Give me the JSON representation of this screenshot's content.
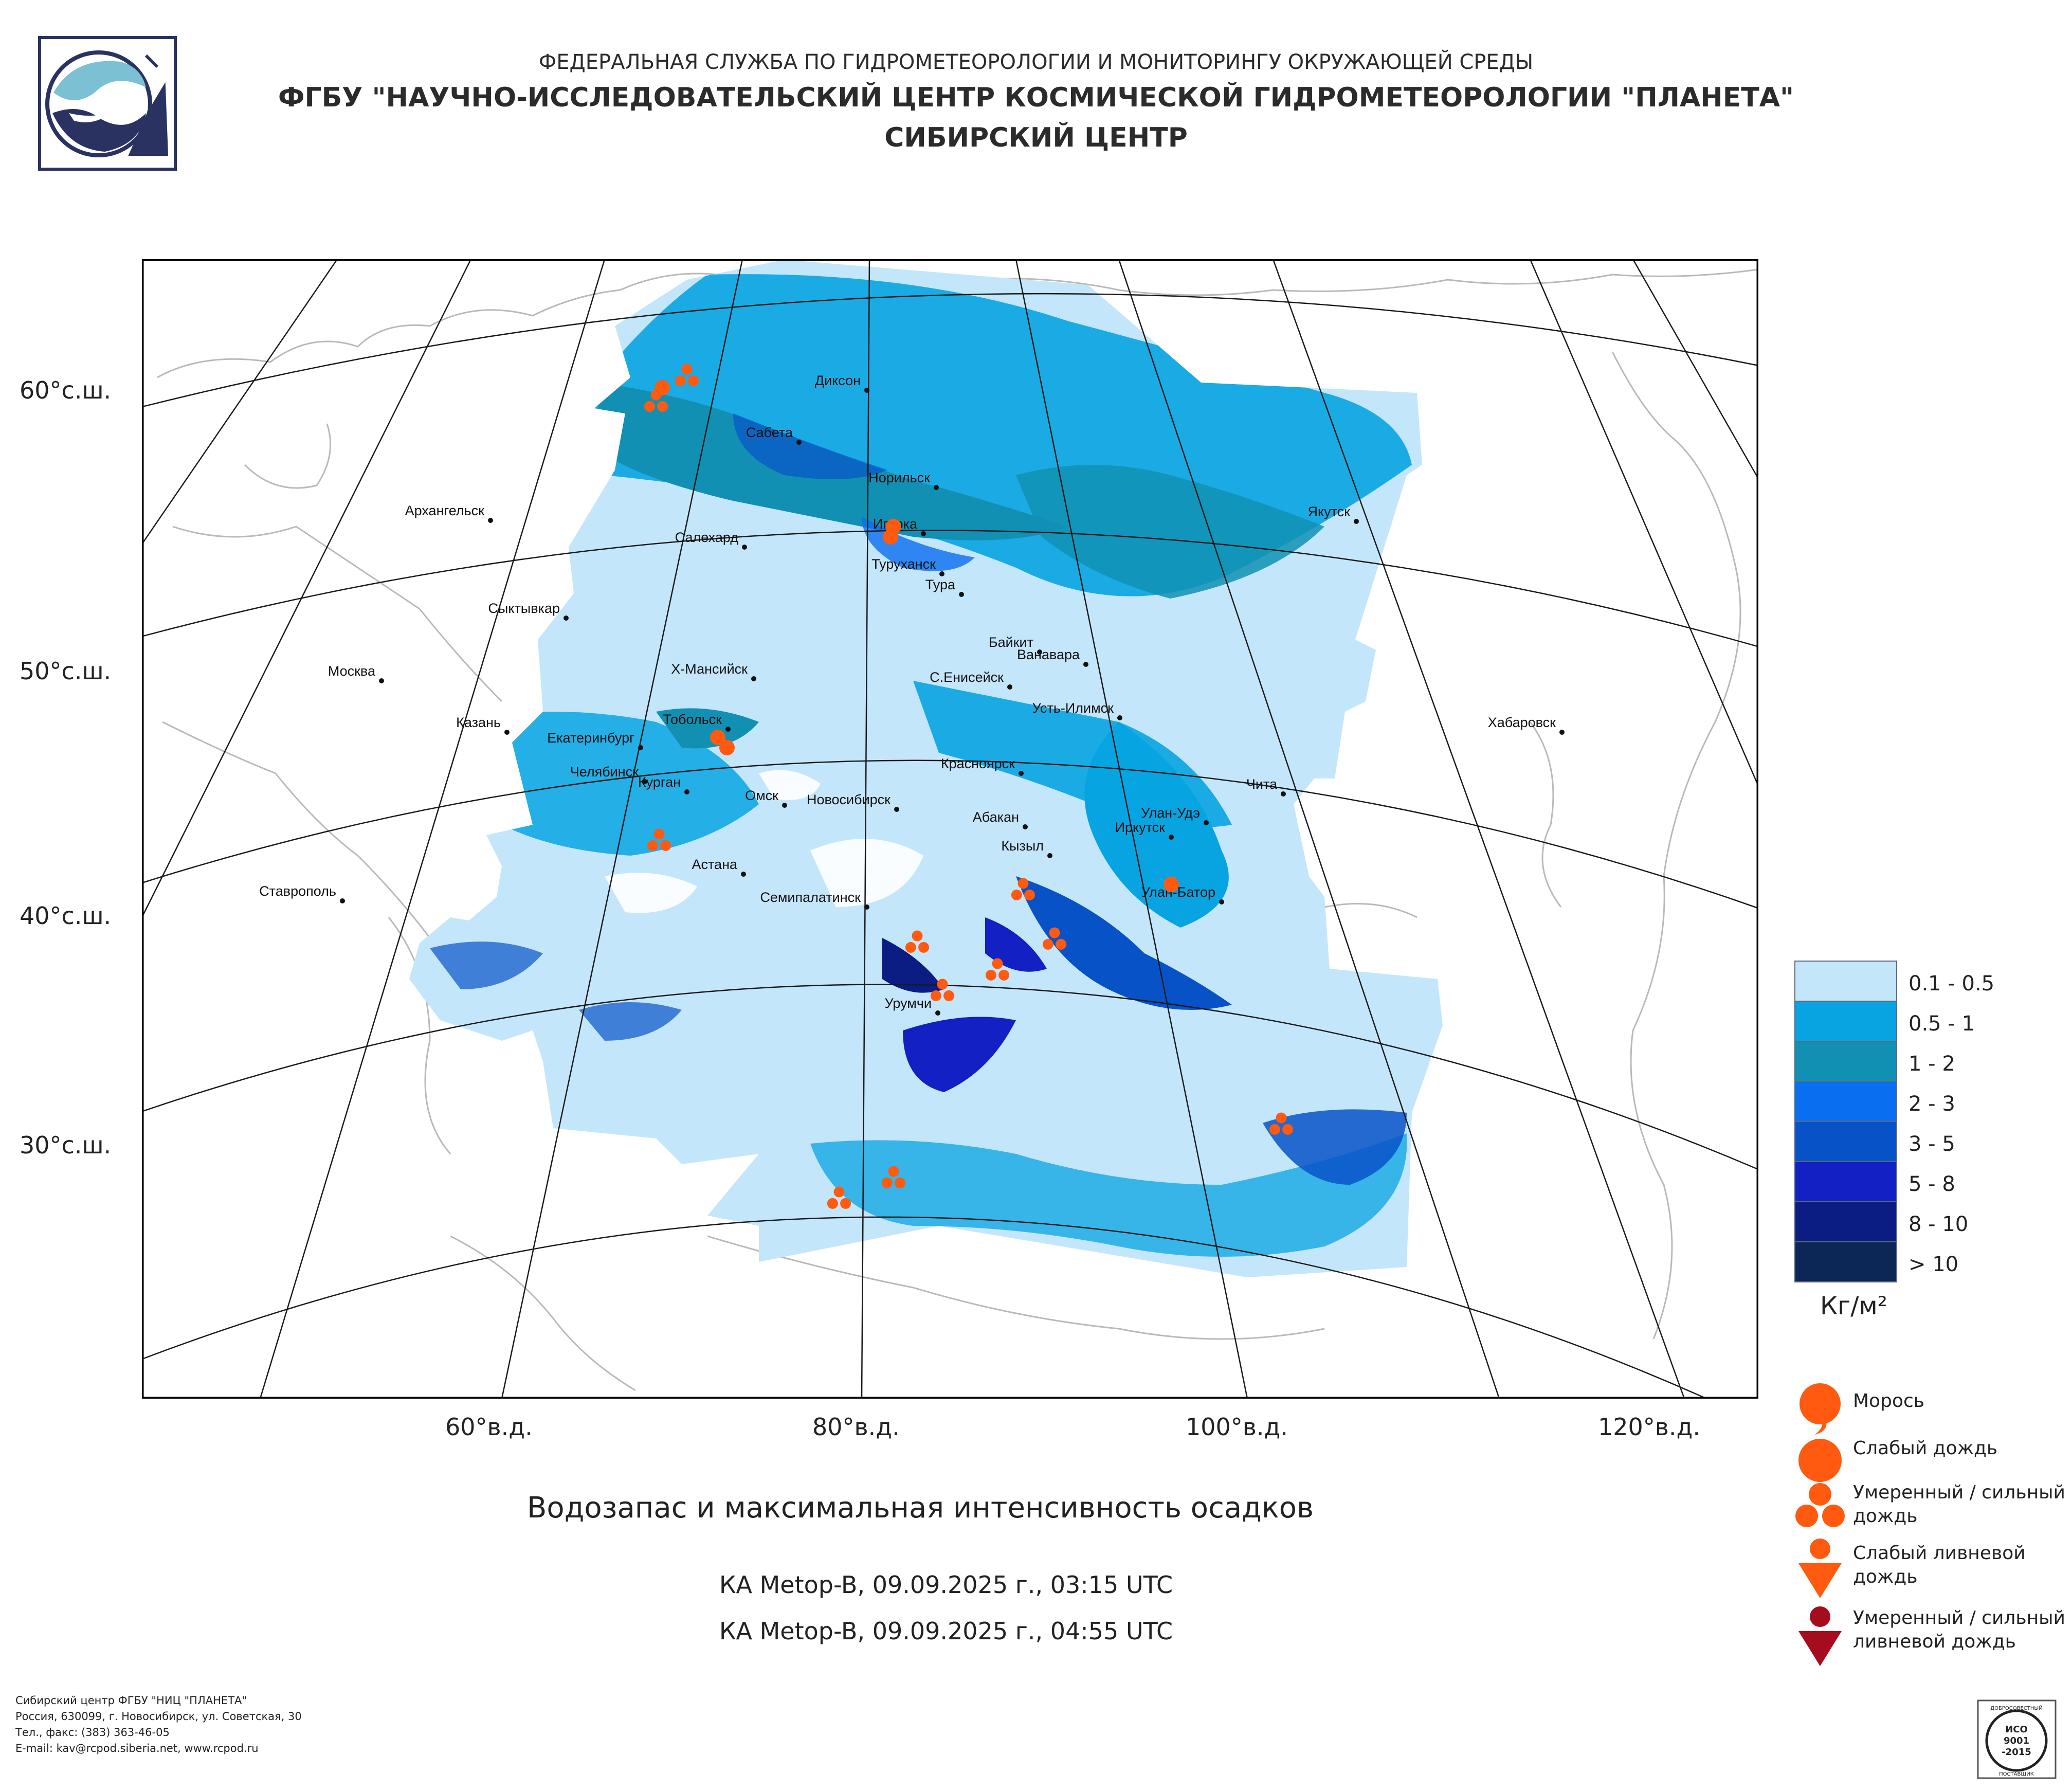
{
  "header": {
    "line1": "ФЕДЕРАЛЬНАЯ СЛУЖБА ПО ГИДРОМЕТЕОРОЛОГИИ И МОНИТОРИНГУ ОКРУЖАЮЩЕЙ СРЕДЫ",
    "line2": "ФГБУ \"НАУЧНО-ИССЛЕДОВАТЕЛЬСКИЙ ЦЕНТР КОСМИЧЕСКОЙ ГИДРОМЕТЕОРОЛОГИИ \"ПЛАНЕТА\"",
    "line3": "СИБИРСКИЙ ЦЕНТР"
  },
  "map": {
    "lat_labels": [
      "60°с.ш.",
      "50°с.ш.",
      "40°с.ш.",
      "30°с.ш."
    ],
    "lon_labels": [
      "60°в.д.",
      "80°в.д.",
      "100°в.д.",
      "120°в.д."
    ],
    "cities": [
      {
        "name": "Диксон"
      },
      {
        "name": "Сабета"
      },
      {
        "name": "Норильск"
      },
      {
        "name": "Игарка"
      },
      {
        "name": "Салехард"
      },
      {
        "name": "Туруханск"
      },
      {
        "name": "Тура"
      },
      {
        "name": "Архангельск"
      },
      {
        "name": "Якутск"
      },
      {
        "name": "Сыктывкар"
      },
      {
        "name": "Байкит"
      },
      {
        "name": "Ванавара"
      },
      {
        "name": "Х-Мансийск"
      },
      {
        "name": "С.Енисейск"
      },
      {
        "name": "Москва"
      },
      {
        "name": "Усть-Илимск"
      },
      {
        "name": "Казань"
      },
      {
        "name": "Тобольск"
      },
      {
        "name": "Хабаровск"
      },
      {
        "name": "Екатеринбург"
      },
      {
        "name": "Красноярск"
      },
      {
        "name": "Челябинск"
      },
      {
        "name": "Курган"
      },
      {
        "name": "Чита"
      },
      {
        "name": "Омск"
      },
      {
        "name": "Новосибирск"
      },
      {
        "name": "Абакан"
      },
      {
        "name": "Улан-Удэ"
      },
      {
        "name": "Иркутск"
      },
      {
        "name": "Кызыл"
      },
      {
        "name": "Астана"
      },
      {
        "name": "Ставрополь"
      },
      {
        "name": "Улан-Батор"
      },
      {
        "name": "Семипалатинск"
      },
      {
        "name": "Урумчи"
      }
    ]
  },
  "title": "Водозапас и максимальная интенсивность осадков",
  "satellite_passes": [
    "КА Metop-B, 09.09.2025 г., 03:15 UTC",
    "КА Metop-B, 09.09.2025 г., 04:55 UTC"
  ],
  "legend": {
    "bins": [
      {
        "label": "0.1 - 0.5",
        "color": "#c4e6fa"
      },
      {
        "label": "0.5 - 1",
        "color": "#08a4e2"
      },
      {
        "label": "1 - 2",
        "color": "#1190b4"
      },
      {
        "label": "2 - 3",
        "color": "#0a6ef0"
      },
      {
        "label": "3 - 5",
        "color": "#0852c8"
      },
      {
        "label": "5 - 8",
        "color": "#1220c4"
      },
      {
        "label": "8 - 10",
        "color": "#0b1c82"
      },
      {
        "label": "> 10",
        "color": "#0c2656"
      }
    ],
    "units": "Кг/м²",
    "symbols": [
      {
        "icon": "drizzle-icon",
        "label": "Морось",
        "color": "#ff5a10"
      },
      {
        "icon": "light-rain-icon",
        "label": "Слабый дождь",
        "color": "#ff5a10"
      },
      {
        "icon": "moderate-rain-icon",
        "label": "Умеренный / сильный дождь",
        "color": "#ff5a10"
      },
      {
        "icon": "light-shower-icon",
        "label": "Слабый ливневой дождь",
        "color": "#ff5a10"
      },
      {
        "icon": "heavy-shower-icon",
        "label": "Умеренный / сильный ливневой дождь",
        "color": "#a50c1e"
      }
    ]
  },
  "footer": [
    "Сибирский центр ФГБУ \"НИЦ \"ПЛАНЕТА\"",
    "Россия, 630099, г. Новосибирск, ул. Советская, 30",
    "Тел., факс: (383) 363-46-05",
    "E-mail: kav@rcpod.siberia.net, www.rcpod.ru"
  ],
  "iso_badge": {
    "top": "ДОБРОСОВЕСТНЫЙ",
    "mid1": "ИСО",
    "mid2": "9001",
    "mid3": "-2015",
    "bottom": "ПОСТАВЩИК"
  }
}
